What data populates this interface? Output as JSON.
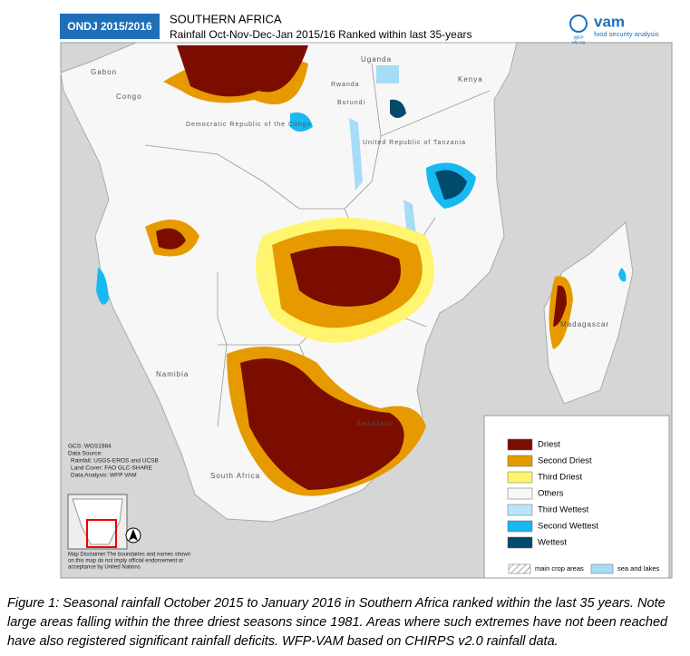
{
  "header": {
    "badge": "ONDJ 2015/2016",
    "title": "SOUTHERN AFRICA",
    "subtitle": "Rainfall Oct-Nov-Dec-Jan 2015/16 Ranked within last 35-years",
    "logo": "vam",
    "logo_sub": "food security analysis",
    "logo_org": "WFP",
    "logo_org_sub": "wfp.org"
  },
  "map": {
    "labels": [
      "Gabon",
      "Congo",
      "Uganda",
      "Kenya",
      "Rwanda",
      "Burundi",
      "Democratic Republic of the Congo",
      "United Republic of Tanzania",
      "Namibia",
      "Madagascar",
      "South Africa",
      "Swaziland"
    ],
    "metadata": [
      "GCS: WGS1984",
      "Data Source:",
      "Rainfall: USGS-EROS and UCSB",
      "Land Cover: FAO GLC-SHARE",
      "Data Analysis: WFP VAM"
    ],
    "disclaimer": [
      "Map Disclaimer:The boundaries and names shown",
      "on this map do not imply official endorsement or",
      "acceptance by United Nations"
    ]
  },
  "legend": {
    "items": [
      {
        "label": "Driest",
        "color": "#7a0c00"
      },
      {
        "label": "Second Driest",
        "color": "#e69a00"
      },
      {
        "label": "Third Driest",
        "color": "#fff56e"
      },
      {
        "label": "Others",
        "color": "#f7f7f7"
      },
      {
        "label": "Third Wettest",
        "color": "#b7e6fa"
      },
      {
        "label": "Second Wettest",
        "color": "#18b8f0"
      },
      {
        "label": "Wettest",
        "color": "#004a6b"
      }
    ],
    "footer": [
      {
        "label": "main crop areas"
      },
      {
        "label": "sea and lakes",
        "color": "#a6dcf5"
      }
    ]
  },
  "caption": "Figure 1: Seasonal rainfall October 2015 to January 2016 in Southern Africa ranked within the last 35 years. Note large areas falling within the three driest seasons since 1981. Areas where such extremes have not been reached have also registered significant rainfall deficits. WFP-VAM based on CHIRPS v2.0 rainfall data."
}
